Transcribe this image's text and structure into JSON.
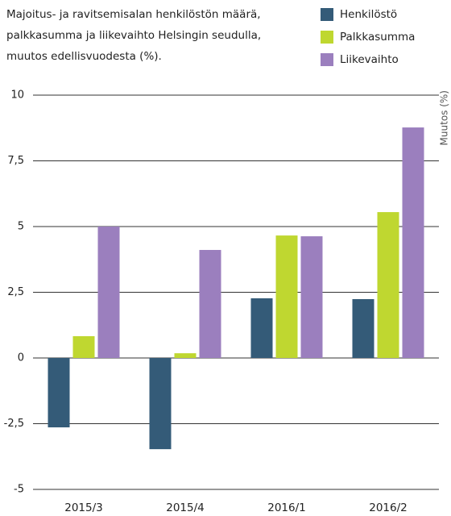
{
  "chart_data": {
    "type": "bar",
    "title": [
      "Majoitus- ja ravitsemisalan henkilöstön määrä,",
      "palkkasumma ja liikevaihto Helsingin seudulla,",
      "muutos edellisvuodesta (%)."
    ],
    "ylabel": "Muutos (%)",
    "categories": [
      "2015/3",
      "2015/4",
      "2016/1",
      "2016/2"
    ],
    "series": [
      {
        "name": "Henkilöstö",
        "color": "#345b78",
        "values": [
          -2.64,
          -3.47,
          2.27,
          2.24
        ]
      },
      {
        "name": "Palkkasumma",
        "color": "#bfd730",
        "values": [
          0.83,
          0.18,
          4.66,
          5.55
        ]
      },
      {
        "name": "Liikevaihto",
        "color": "#9b7fbe",
        "values": [
          5.0,
          4.11,
          4.63,
          8.77
        ]
      }
    ],
    "ylim": [
      -5,
      10
    ],
    "yticks": [
      -5,
      {
        "value": -2.5,
        "label": "-2,5"
      },
      0,
      {
        "value": 2.5,
        "label": "2,5"
      },
      5,
      {
        "value": 7.5,
        "label": "7,5"
      },
      10
    ],
    "grid": true
  }
}
